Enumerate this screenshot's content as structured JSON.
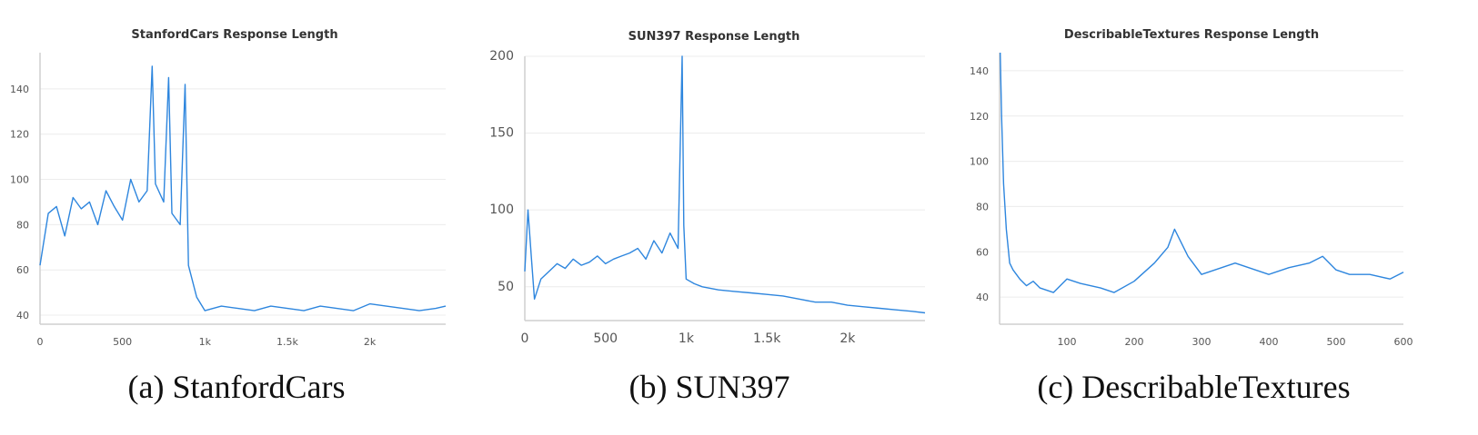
{
  "chart_data": [
    {
      "type": "line",
      "title": "StanfordCars Response Length",
      "caption": "(a) StanfordCars",
      "xlim": [
        0,
        2460
      ],
      "ylim": [
        36,
        156
      ],
      "xticks": [
        0,
        500,
        1000,
        1500,
        2000
      ],
      "xtick_labels": [
        "0",
        "500",
        "1k",
        "1.5k",
        "2k"
      ],
      "yticks": [
        40,
        60,
        80,
        100,
        120,
        140
      ],
      "yunits_big": false,
      "grid": true,
      "series": [
        {
          "color": "#2e86de",
          "x": [
            0,
            50,
            100,
            150,
            200,
            250,
            300,
            350,
            400,
            450,
            500,
            550,
            600,
            650,
            680,
            700,
            750,
            780,
            800,
            850,
            880,
            900,
            950,
            1000,
            1100,
            1200,
            1300,
            1400,
            1500,
            1600,
            1700,
            1800,
            1900,
            2000,
            2100,
            2200,
            2300,
            2400,
            2460
          ],
          "y": [
            62,
            85,
            88,
            75,
            92,
            87,
            90,
            80,
            95,
            88,
            82,
            100,
            90,
            95,
            150,
            98,
            90,
            145,
            85,
            80,
            142,
            62,
            48,
            42,
            44,
            43,
            42,
            44,
            43,
            42,
            44,
            43,
            42,
            45,
            44,
            43,
            42,
            43,
            44
          ]
        }
      ]
    },
    {
      "type": "line",
      "title": "SUN397 Response Length",
      "caption": "(b) SUN397",
      "xlim": [
        0,
        2480
      ],
      "ylim": [
        28,
        200
      ],
      "xticks": [
        0,
        500,
        1000,
        1500,
        2000
      ],
      "xtick_labels": [
        "0",
        "500",
        "1k",
        "1.5k",
        "2k"
      ],
      "yticks": [
        50,
        100,
        150,
        200
      ],
      "yunits_big": true,
      "grid": true,
      "series": [
        {
          "color": "#2e86de",
          "x": [
            0,
            20,
            40,
            60,
            100,
            150,
            200,
            250,
            300,
            350,
            400,
            450,
            500,
            550,
            600,
            650,
            700,
            750,
            800,
            850,
            900,
            950,
            975,
            985,
            1000,
            1050,
            1100,
            1200,
            1300,
            1400,
            1500,
            1600,
            1700,
            1800,
            1900,
            2000,
            2100,
            2200,
            2300,
            2400,
            2480
          ],
          "y": [
            60,
            100,
            70,
            42,
            55,
            60,
            65,
            62,
            68,
            64,
            66,
            70,
            65,
            68,
            70,
            72,
            75,
            68,
            80,
            72,
            85,
            75,
            200,
            90,
            55,
            52,
            50,
            48,
            47,
            46,
            45,
            44,
            42,
            40,
            40,
            38,
            37,
            36,
            35,
            34,
            33
          ]
        }
      ]
    },
    {
      "type": "line",
      "title": "DescribableTextures Response Length",
      "caption": "(c) DescribableTextures",
      "xlim": [
        0,
        600
      ],
      "ylim": [
        28,
        148
      ],
      "xticks": [
        100,
        200,
        300,
        400,
        500,
        600
      ],
      "xtick_labels": [
        "100",
        "200",
        "300",
        "400",
        "500",
        "600"
      ],
      "yticks": [
        40,
        60,
        80,
        100,
        120,
        140
      ],
      "yunits_big": false,
      "grid": true,
      "series": [
        {
          "color": "#2e86de",
          "x": [
            1,
            3,
            6,
            10,
            15,
            20,
            30,
            40,
            50,
            60,
            80,
            100,
            120,
            150,
            170,
            200,
            230,
            250,
            260,
            280,
            300,
            320,
            350,
            380,
            400,
            430,
            460,
            480,
            500,
            520,
            550,
            580,
            600
          ],
          "y": [
            148,
            120,
            90,
            70,
            55,
            52,
            48,
            45,
            47,
            44,
            42,
            48,
            46,
            44,
            42,
            47,
            55,
            62,
            70,
            58,
            50,
            52,
            55,
            52,
            50,
            53,
            55,
            58,
            52,
            50,
            50,
            48,
            51
          ]
        }
      ]
    }
  ]
}
